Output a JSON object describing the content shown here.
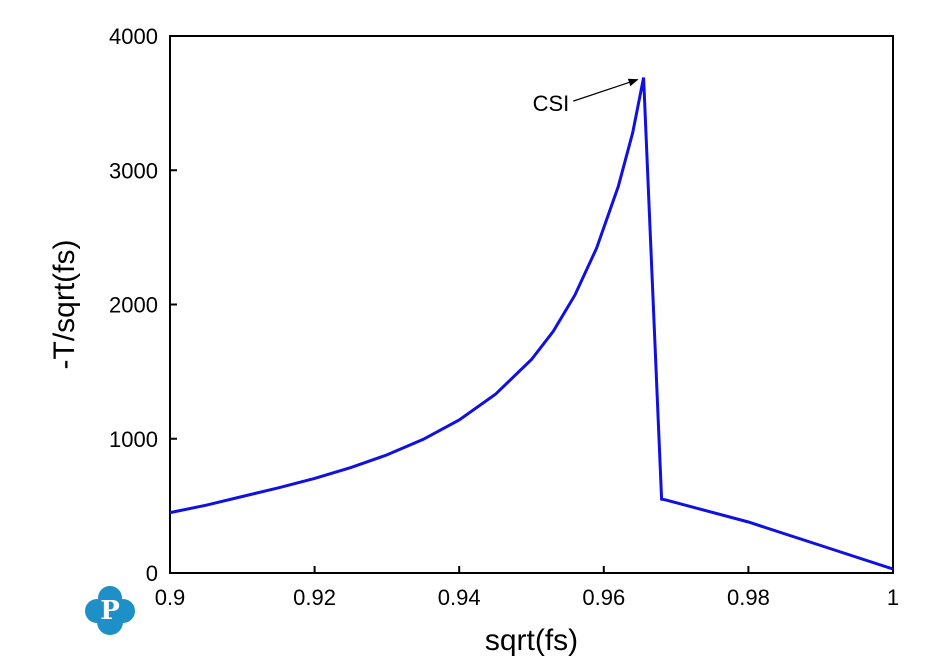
{
  "chart_data": {
    "type": "line",
    "xlabel": "sqrt(fs)",
    "ylabel": "-T/sqrt(fs)",
    "xlim": [
      0.9,
      1.0
    ],
    "ylim": [
      0,
      4000
    ],
    "x_ticks": [
      0.9,
      0.92,
      0.94,
      0.96,
      0.98,
      1.0
    ],
    "x_tick_labels": [
      "0.9",
      "0.92",
      "0.94",
      "0.96",
      "0.98",
      "1"
    ],
    "y_ticks": [
      0,
      1000,
      2000,
      3000,
      4000
    ],
    "y_tick_labels": [
      "0",
      "1000",
      "2000",
      "3000",
      "4000"
    ],
    "grid": false,
    "legend": "none",
    "series": [
      {
        "color": "#1010e0",
        "x": [
          0.9,
          0.905,
          0.91,
          0.915,
          0.92,
          0.925,
          0.93,
          0.935,
          0.94,
          0.945,
          0.95,
          0.953,
          0.956,
          0.959,
          0.962,
          0.964,
          0.9655,
          0.968,
          0.9685,
          0.98,
          0.99,
          1.0
        ],
        "y": [
          450,
          505,
          570,
          635,
          705,
          785,
          880,
          995,
          1140,
          1330,
          1590,
          1800,
          2070,
          2420,
          2880,
          3280,
          3690,
          550,
          545,
          380,
          205,
          30
        ]
      }
    ],
    "annotations": [
      {
        "text": "CSI",
        "x": 0.9655,
        "y": 3690,
        "text_x": 0.9555,
        "text_y": 3500
      }
    ]
  },
  "logo": {
    "name": "company-logo",
    "letter": "P",
    "color": "#1f8fc7"
  }
}
